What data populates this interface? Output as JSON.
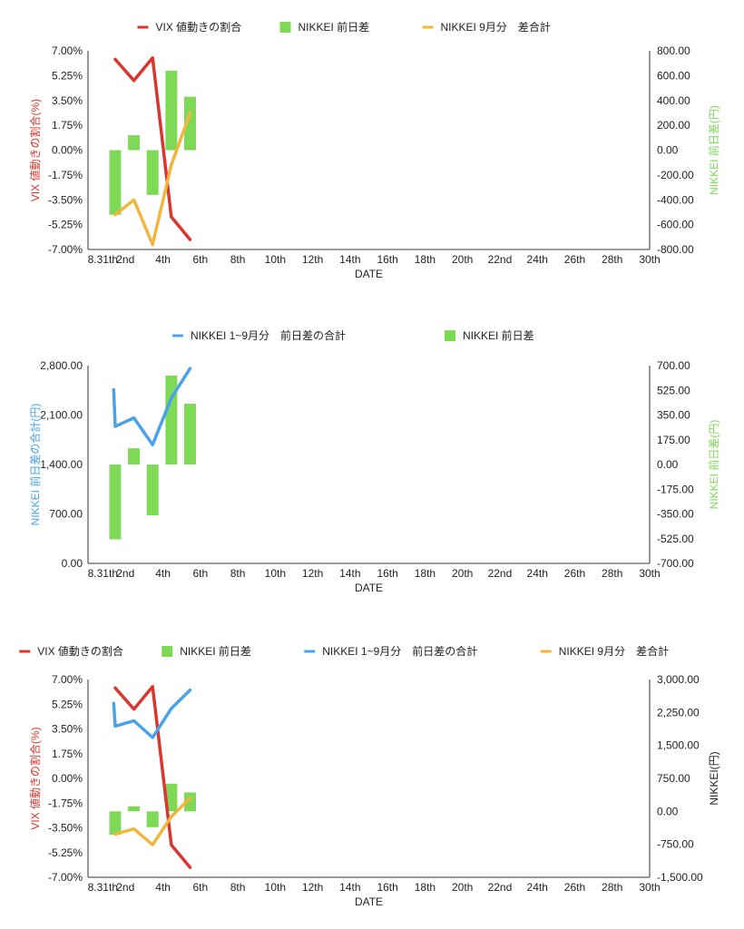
{
  "colors": {
    "vix": "#d8372f",
    "bar": "#7ed957",
    "line9": "#f2b53f",
    "total": "#4aa3e8",
    "axis": "#333333",
    "text": "#222222"
  },
  "x_ticks": [
    "8.31th",
    "2nd",
    "4th",
    "6th",
    "8th",
    "10th",
    "12th",
    "14th",
    "16th",
    "18th",
    "20th",
    "22nd",
    "24th",
    "26th",
    "28th",
    "30th"
  ],
  "chart_data": [
    {
      "type": "line+bar",
      "xlabel": "DATE",
      "y_left": {
        "label": "VIX 値動きの割合(%)",
        "min": -7,
        "max": 7,
        "ticks": [
          "7.00%",
          "5.25%",
          "3.50%",
          "1.75%",
          "0.00%",
          "-1.75%",
          "-3.50%",
          "-5.25%",
          "-7.00%"
        ]
      },
      "y_right": {
        "label": "NIKKEI 前日差(円)",
        "min": -800,
        "max": 800,
        "ticks": [
          "800.00",
          "600.00",
          "400.00",
          "200.00",
          "0.00",
          "-200.00",
          "-400.00",
          "-600.00",
          "-800.00"
        ]
      },
      "legend": [
        {
          "name": "VIX 値動きの割合",
          "kind": "line",
          "color": "#d8372f"
        },
        {
          "name": "NIKKEI 前日差",
          "kind": "bar",
          "color": "#7ed957"
        },
        {
          "name": "NIKKEI 9月分　差合計",
          "kind": "line",
          "color": "#f2b53f"
        }
      ],
      "series": [
        {
          "name": "VIX 値動きの割合",
          "kind": "line",
          "axis": "left",
          "color": "#d8372f",
          "x": [
            1,
            2,
            3,
            4,
            5
          ],
          "y": [
            6.4,
            4.9,
            6.5,
            -4.7,
            -6.3
          ]
        },
        {
          "name": "NIKKEI 前日差",
          "kind": "bar",
          "axis": "right",
          "color": "#7ed957",
          "x": [
            1,
            2,
            3,
            4,
            5
          ],
          "y": [
            -520,
            120,
            -360,
            640,
            430
          ]
        },
        {
          "name": "NIKKEI 9月分　差合計",
          "kind": "line",
          "axis": "right",
          "color": "#f2b53f",
          "x": [
            1,
            2,
            3,
            4,
            5
          ],
          "y": [
            -520,
            -400,
            -760,
            -120,
            300
          ]
        }
      ]
    },
    {
      "type": "line+bar",
      "xlabel": "DATE",
      "y_left": {
        "label": "NIKKEI 前日差の合計(円)",
        "min": 0,
        "max": 2800,
        "ticks": [
          "2,800.00",
          "2,100.00",
          "1,400.00",
          "700.00",
          "0.00"
        ]
      },
      "y_right": {
        "label": "NIKKEI 前日差(円)",
        "min": -700,
        "max": 700,
        "ticks": [
          "700.00",
          "525.00",
          "350.00",
          "175.00",
          "0.00",
          "-175.00",
          "-350.00",
          "-525.00",
          "-700.00"
        ]
      },
      "legend": [
        {
          "name": "NIKKEI 1~9月分　前日差の合計",
          "kind": "line",
          "color": "#4aa3e8"
        },
        {
          "name": "NIKKEI 前日差",
          "kind": "bar",
          "color": "#7ed957"
        }
      ],
      "series": [
        {
          "name": "NIKKEI 1~9月分　前日差の合計",
          "kind": "line",
          "axis": "left",
          "color": "#4aa3e8",
          "x": [
            0.5,
            1,
            2,
            3,
            4,
            5
          ],
          "y": [
            2460,
            1940,
            2060,
            1680,
            2340,
            2760
          ]
        },
        {
          "name": "NIKKEI 前日差",
          "kind": "bar",
          "axis": "right",
          "color": "#7ed957",
          "x": [
            1,
            2,
            3,
            4,
            5
          ],
          "y": [
            -530,
            115,
            -360,
            630,
            430
          ]
        }
      ]
    },
    {
      "type": "line+bar",
      "xlabel": "DATE",
      "y_left": {
        "label": "VIX 値動きの割合(%)",
        "min": -7,
        "max": 7,
        "ticks": [
          "7.00%",
          "5.25%",
          "3.50%",
          "1.75%",
          "0.00%",
          "-1.75%",
          "-3.50%",
          "-5.25%",
          "-7.00%"
        ]
      },
      "y_right": {
        "label": "NIKKEI(円)",
        "min": -1500,
        "max": 3000,
        "ticks": [
          "3,000.00",
          "2,250.00",
          "1,500.00",
          "750.00",
          "0.00",
          "-750.00",
          "-1,500.00"
        ]
      },
      "legend": [
        {
          "name": "VIX 値動きの割合",
          "kind": "line",
          "color": "#d8372f"
        },
        {
          "name": "NIKKEI 前日差",
          "kind": "bar",
          "color": "#7ed957"
        },
        {
          "name": "NIKKEI 1~9月分　前日差の合計",
          "kind": "line",
          "color": "#4aa3e8"
        },
        {
          "name": "NIKKEI 9月分　差合計",
          "kind": "line",
          "color": "#f2b53f"
        }
      ],
      "series": [
        {
          "name": "VIX 値動きの割合",
          "kind": "line",
          "axis": "left",
          "color": "#d8372f",
          "x": [
            1,
            2,
            3,
            4,
            5
          ],
          "y": [
            6.4,
            4.9,
            6.5,
            -4.7,
            -6.3
          ]
        },
        {
          "name": "NIKKEI 前日差",
          "kind": "bar",
          "axis": "right",
          "color": "#7ed957",
          "x": [
            1,
            2,
            3,
            4,
            5
          ],
          "y": [
            -530,
            115,
            -360,
            630,
            430
          ]
        },
        {
          "name": "NIKKEI 1~9月分　前日差の合計",
          "kind": "line",
          "axis": "right",
          "color": "#4aa3e8",
          "x": [
            0.5,
            1,
            2,
            3,
            4,
            5
          ],
          "y": [
            2460,
            1940,
            2060,
            1680,
            2340,
            2760
          ]
        },
        {
          "name": "NIKKEI 9月分　差合計",
          "kind": "line",
          "axis": "right",
          "color": "#f2b53f",
          "x": [
            1,
            2,
            3,
            4,
            5
          ],
          "y": [
            -520,
            -400,
            -760,
            -120,
            300
          ]
        }
      ]
    }
  ]
}
